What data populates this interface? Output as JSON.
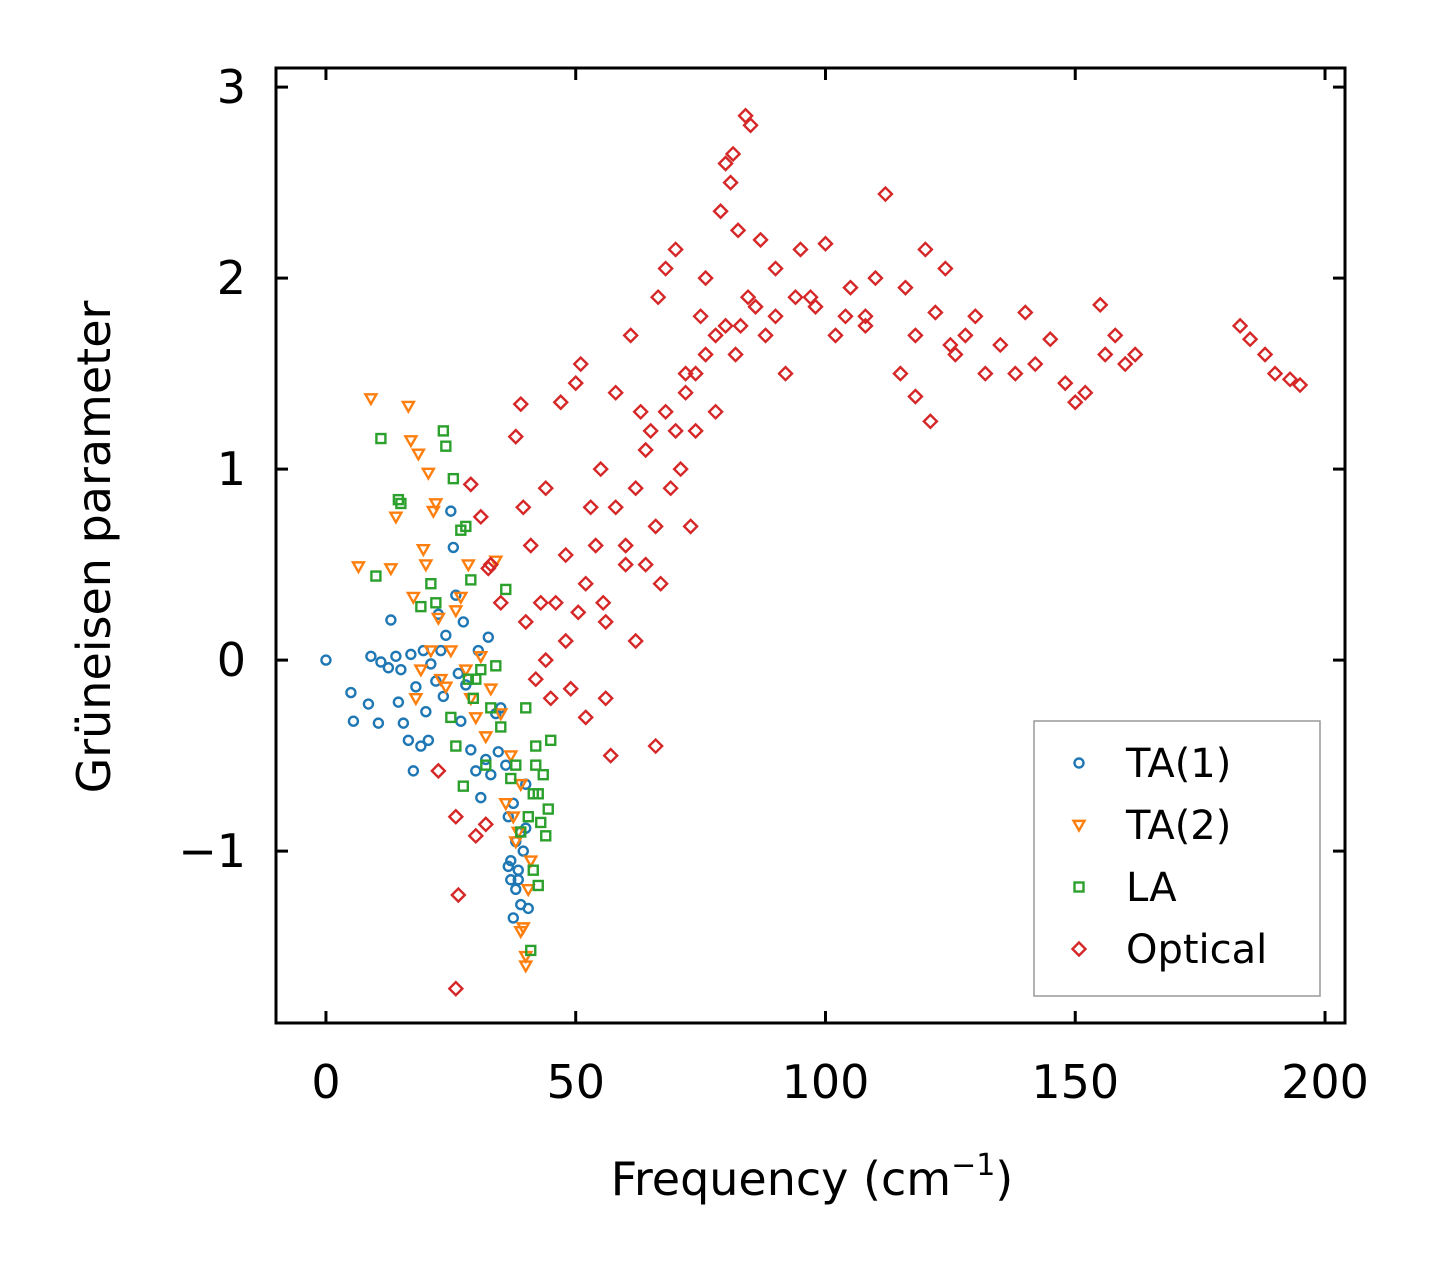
{
  "chart_data": {
    "type": "scatter",
    "title": "",
    "xlabel": "Frequency (cm",
    "xlabel_superscript": "−1",
    "xlabel_suffix": ")",
    "ylabel": "Grüneisen parameter",
    "xlim": [
      -10,
      204
    ],
    "ylim": [
      -1.9,
      3.1
    ],
    "xticks": [
      0,
      50,
      100,
      150,
      200
    ],
    "xtick_labels": [
      "0",
      "50",
      "100",
      "150",
      "200"
    ],
    "yticks": [
      -1,
      0,
      1,
      2,
      3
    ],
    "ytick_labels": [
      "−1",
      "0",
      "1",
      "2",
      "3"
    ],
    "grid": false,
    "legend_position": "lower-right",
    "series": [
      {
        "name": "TA(1)",
        "marker": "circle",
        "color": "#1f77b4",
        "x": [
          0,
          5,
          5.5,
          8.5,
          9,
          10.5,
          11,
          12.5,
          13,
          14,
          14.5,
          15,
          15.5,
          16.5,
          17,
          17.5,
          18,
          19,
          19.5,
          20,
          20.5,
          21,
          22,
          22.5,
          23,
          23.5,
          24,
          25,
          25.5,
          26,
          26.5,
          27,
          27.5,
          28,
          29,
          30,
          30.5,
          31,
          32,
          32.5,
          33,
          34,
          34.5,
          35,
          36,
          36.5,
          37,
          37,
          37.5,
          38,
          38,
          38.5,
          39,
          39,
          39.5,
          40,
          40,
          40.5,
          36.5,
          37.5,
          38.5
        ],
        "y": [
          0,
          -0.17,
          -0.32,
          -0.23,
          0.02,
          -0.33,
          -0.01,
          -0.04,
          0.21,
          0.02,
          -0.22,
          -0.05,
          -0.33,
          -0.42,
          0.03,
          -0.58,
          -0.14,
          -0.45,
          0.05,
          -0.27,
          -0.42,
          -0.02,
          -0.11,
          0.24,
          0.05,
          -0.19,
          0.13,
          0.78,
          0.59,
          0.34,
          -0.07,
          -0.32,
          0.2,
          -0.13,
          -0.47,
          -0.58,
          0.05,
          -0.72,
          -0.52,
          0.12,
          -0.6,
          -0.28,
          -0.48,
          -0.25,
          -0.55,
          -0.82,
          -1.05,
          -1.15,
          -1.35,
          -1.2,
          -0.95,
          -1.1,
          -1.28,
          -0.9,
          -1.0,
          -0.88,
          -0.65,
          -1.3,
          -1.08,
          -0.75,
          -1.15
        ]
      },
      {
        "name": "TA(2)",
        "marker": "triangle-down",
        "color": "#ff7f0e",
        "x": [
          6.5,
          9,
          13,
          14,
          16.5,
          17,
          17.5,
          18,
          18.5,
          19,
          19.5,
          20,
          20.5,
          21,
          21.5,
          22,
          22.5,
          23,
          24,
          25,
          26,
          27,
          28,
          28.5,
          29,
          30,
          31,
          32,
          33,
          34,
          35,
          36,
          37,
          38,
          39,
          39.5,
          40,
          40,
          40.5,
          41,
          39,
          38.5,
          37.5
        ],
        "y": [
          0.49,
          1.37,
          0.48,
          0.75,
          1.33,
          1.15,
          0.33,
          -0.2,
          1.08,
          -0.05,
          0.58,
          0.5,
          0.98,
          0.05,
          0.78,
          0.82,
          0.22,
          -0.1,
          -0.14,
          0.05,
          0.26,
          0.33,
          -0.05,
          0.5,
          -0.2,
          -0.3,
          0.02,
          -0.4,
          -0.15,
          0.52,
          -0.28,
          -0.75,
          -0.5,
          -0.95,
          -0.65,
          -1.4,
          -1.55,
          -1.6,
          -1.2,
          -1.05,
          -1.42,
          -0.9,
          -0.82
        ]
      },
      {
        "name": "LA",
        "marker": "square",
        "color": "#2ca02c",
        "x": [
          10,
          11,
          14.5,
          15,
          19,
          21,
          22,
          23.5,
          24,
          25,
          25.5,
          26,
          27,
          27.5,
          28,
          28.5,
          29,
          29.5,
          30,
          31,
          32,
          33,
          34,
          35,
          36,
          37,
          38,
          39,
          40,
          40.5,
          41,
          41.5,
          42,
          42.5,
          43,
          43.5,
          44,
          44.5,
          45,
          41.5,
          42,
          42.5
        ],
        "y": [
          0.44,
          1.16,
          0.84,
          0.82,
          0.28,
          0.4,
          0.3,
          1.2,
          1.12,
          -0.3,
          0.95,
          -0.45,
          0.68,
          -0.66,
          0.7,
          -0.1,
          0.42,
          -0.2,
          -0.1,
          -0.05,
          -0.55,
          -0.25,
          -0.03,
          -0.35,
          0.37,
          -0.62,
          -0.55,
          -0.9,
          -0.25,
          -0.82,
          -1.52,
          -0.7,
          -0.45,
          -1.18,
          -0.85,
          -0.6,
          -0.92,
          -0.78,
          -0.42,
          -1.1,
          -0.55,
          -0.7
        ]
      },
      {
        "name": "Optical",
        "marker": "diamond",
        "color": "#d62728",
        "x": [
          22.5,
          26,
          26,
          26.5,
          29,
          30,
          31,
          32,
          32.5,
          33,
          35,
          38,
          39,
          39.5,
          40,
          41,
          42,
          43,
          44,
          45,
          47,
          48,
          49,
          50,
          50.5,
          51,
          52,
          53,
          55,
          55.5,
          56,
          57,
          58,
          60,
          61,
          62,
          63,
          64,
          65,
          66,
          66.5,
          67,
          68,
          69,
          70,
          71,
          72,
          73,
          74,
          75,
          76,
          78,
          79,
          80,
          81,
          81.5,
          82,
          82.5,
          83,
          84,
          84.5,
          85,
          87,
          88,
          90,
          92,
          95,
          97,
          100,
          102,
          105,
          108,
          110,
          112,
          115,
          116,
          118,
          120,
          121,
          122,
          124,
          125,
          128,
          130,
          135,
          138,
          140,
          145,
          148,
          150,
          155,
          156,
          158,
          160,
          162,
          183,
          185,
          188,
          190,
          193,
          195,
          44,
          46,
          48,
          52,
          54,
          56,
          58,
          60,
          62,
          64,
          66,
          68,
          70,
          72,
          74,
          76,
          78,
          80,
          86,
          90,
          94,
          98,
          104,
          108,
          118,
          126,
          132,
          142,
          152
        ],
        "y": [
          -0.58,
          -0.82,
          -1.72,
          -1.23,
          0.92,
          -0.92,
          0.75,
          -0.86,
          0.48,
          0.5,
          0.3,
          1.17,
          1.34,
          0.8,
          0.2,
          0.6,
          -0.1,
          0.3,
          0.9,
          -0.2,
          1.35,
          0.55,
          -0.15,
          1.45,
          0.25,
          1.55,
          -0.3,
          0.8,
          1.0,
          0.3,
          -0.2,
          -0.5,
          1.4,
          0.6,
          1.7,
          0.1,
          1.3,
          0.5,
          1.2,
          -0.45,
          1.9,
          0.4,
          2.05,
          0.9,
          2.15,
          1.0,
          1.5,
          0.7,
          1.2,
          1.8,
          2.0,
          1.3,
          2.35,
          2.6,
          2.5,
          2.65,
          1.6,
          2.25,
          1.75,
          2.85,
          1.9,
          2.8,
          2.2,
          1.7,
          2.05,
          1.5,
          2.15,
          1.9,
          2.18,
          1.7,
          1.95,
          1.8,
          2.0,
          2.44,
          1.5,
          1.95,
          1.38,
          2.15,
          1.25,
          1.82,
          2.05,
          1.65,
          1.7,
          1.8,
          1.65,
          1.5,
          1.82,
          1.68,
          1.45,
          1.35,
          1.86,
          1.6,
          1.7,
          1.55,
          1.6,
          1.75,
          1.68,
          1.6,
          1.5,
          1.47,
          1.44,
          0.0,
          0.3,
          0.1,
          0.4,
          0.6,
          0.2,
          0.8,
          0.5,
          0.9,
          1.1,
          0.7,
          1.3,
          1.2,
          1.4,
          1.5,
          1.6,
          1.7,
          1.75,
          1.85,
          1.8,
          1.9,
          1.85,
          1.8,
          1.75,
          1.7,
          1.6,
          1.5,
          1.55,
          1.4
        ]
      }
    ]
  }
}
